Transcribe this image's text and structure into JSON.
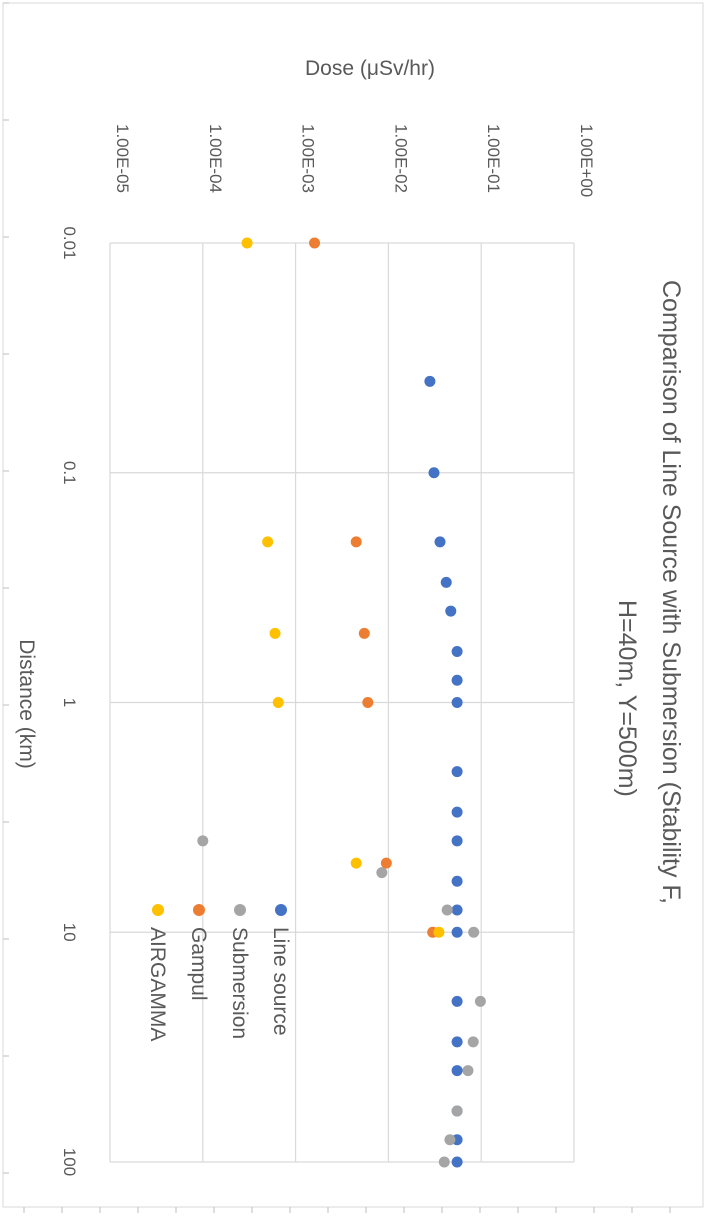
{
  "chart_data": {
    "type": "scatter",
    "title_lines": [
      "Comparison of Line Source with Submersion (Stability F,",
      "H=40m, Y=500m)"
    ],
    "xlabel": "Distance (km)",
    "ylabel": "Dose (μSv/hr)",
    "x_scale": "log",
    "y_scale": "log",
    "xlim": [
      0.01,
      100
    ],
    "ylim": [
      1e-05,
      1
    ],
    "x_tick_labels": [
      "0.01",
      "0.1",
      "1",
      "10",
      "100"
    ],
    "y_tick_labels": [
      "1.00E-05",
      "1.00E-04",
      "1.00E-03",
      "1.00E-02",
      "1.00E-01",
      "1.00E+00"
    ],
    "grid": true,
    "legend_position": "bottom-left",
    "series": [
      {
        "name": "Line source",
        "color": "#4472C4",
        "points": [
          [
            0.04,
            0.028
          ],
          [
            0.1,
            0.031
          ],
          [
            0.2,
            0.036
          ],
          [
            0.3,
            0.042
          ],
          [
            0.4,
            0.047
          ],
          [
            0.6,
            0.055
          ],
          [
            0.8,
            0.055
          ],
          [
            1,
            0.055
          ],
          [
            2,
            0.055
          ],
          [
            3,
            0.055
          ],
          [
            4,
            0.055
          ],
          [
            6,
            0.055
          ],
          [
            8,
            0.055
          ],
          [
            10,
            0.055
          ],
          [
            20,
            0.055
          ],
          [
            30,
            0.055
          ],
          [
            40,
            0.055
          ],
          [
            60,
            0.055
          ],
          [
            80,
            0.055
          ],
          [
            100,
            0.055
          ]
        ]
      },
      {
        "name": "Submersion",
        "color": "#A5A5A5",
        "points": [
          [
            4,
            0.0001
          ],
          [
            5.5,
            0.0085
          ],
          [
            8,
            0.043
          ],
          [
            10,
            0.083
          ],
          [
            20,
            0.098
          ],
          [
            30,
            0.082
          ],
          [
            40,
            0.072
          ],
          [
            60,
            0.055
          ],
          [
            80,
            0.046
          ],
          [
            100,
            0.04
          ]
        ]
      },
      {
        "name": "Gampul",
        "color": "#ED7D31",
        "points": [
          [
            0.01,
            0.0016
          ],
          [
            0.2,
            0.0045
          ],
          [
            0.5,
            0.0055
          ],
          [
            1,
            0.006
          ],
          [
            5,
            0.0095
          ],
          [
            10,
            0.03
          ]
        ]
      },
      {
        "name": "AIRGAMMA",
        "color": "#FFC000",
        "points": [
          [
            0.01,
            0.0003
          ],
          [
            0.2,
            0.0005
          ],
          [
            0.5,
            0.0006
          ],
          [
            1,
            0.00065
          ],
          [
            5,
            0.0045
          ],
          [
            10,
            0.035
          ]
        ]
      }
    ]
  }
}
